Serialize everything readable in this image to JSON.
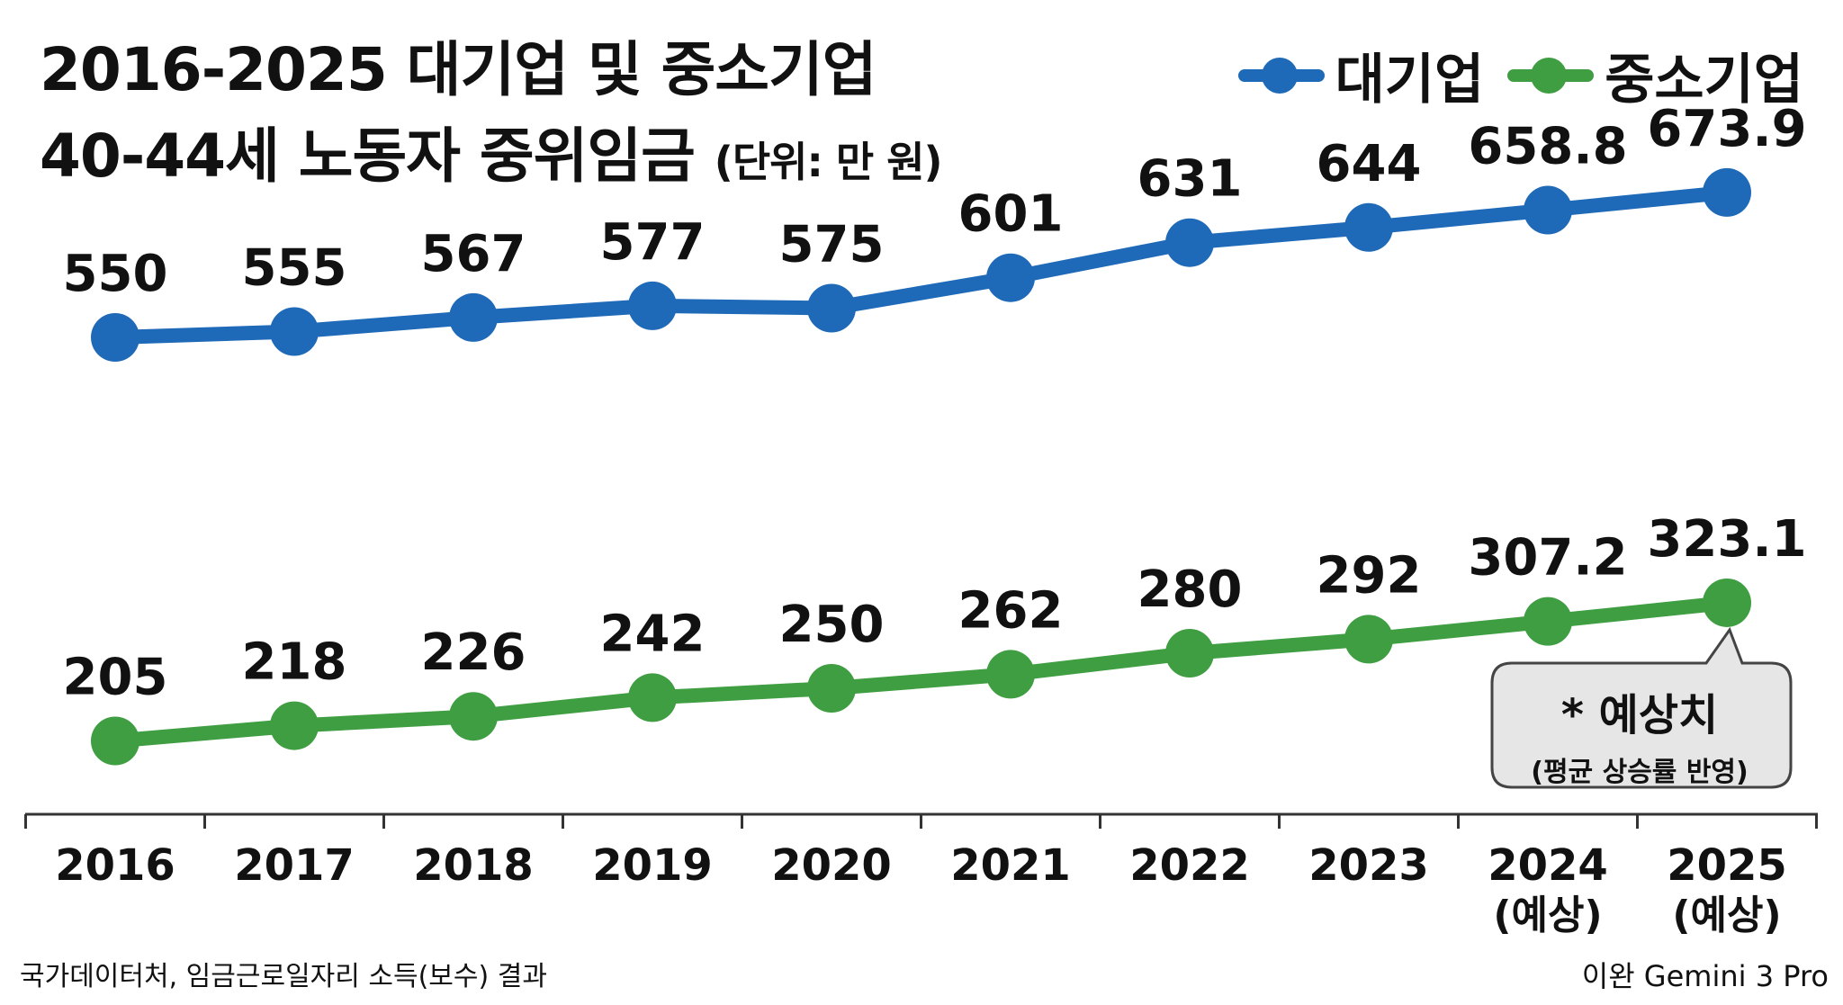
{
  "title": {
    "line1": "2016-2025 대기업 및 중소기업",
    "line2": "40-44세 노동자 중위임금",
    "unit": "(단위: 만 원)"
  },
  "legend": [
    {
      "label": "대기업",
      "color": "#1f6ab8"
    },
    {
      "label": "중소기업",
      "color": "#3f9e41"
    }
  ],
  "chart_data": {
    "type": "line",
    "title": "2016-2025 대기업 및 중소기업 40-44세 노동자 중위임금",
    "ylabel": "(단위: 만 원)",
    "xlabel": "",
    "ylim": [
      180,
      690
    ],
    "categories": [
      "2016",
      "2017",
      "2018",
      "2019",
      "2020",
      "2021",
      "2022",
      "2023",
      "2024",
      "2025"
    ],
    "category_notes": [
      "",
      "",
      "",
      "",
      "",
      "",
      "",
      "",
      "(예상)",
      "(예상)"
    ],
    "series": [
      {
        "name": "대기업",
        "color": "#1f6ab8",
        "values": [
          550,
          555,
          567,
          577,
          575,
          601,
          631,
          644,
          658.8,
          673.9
        ],
        "labels": [
          "550",
          "555",
          "567",
          "577",
          "575",
          "601",
          "631",
          "644",
          "658.8",
          "673.9"
        ]
      },
      {
        "name": "중소기업",
        "color": "#3f9e41",
        "values": [
          205,
          218,
          226,
          242,
          250,
          262,
          280,
          292,
          307.2,
          323.1
        ],
        "labels": [
          "205",
          "218",
          "226",
          "242",
          "250",
          "262",
          "280",
          "292",
          "307.2",
          "323.1"
        ]
      }
    ],
    "grid": false,
    "legend_position": "top-right"
  },
  "note": {
    "line1": "* 예상치",
    "line2": "(평균 상승률 반영)"
  },
  "source": "국가데이터처, 임금근로일자리 소득(보수) 결과",
  "credit": "이완 Gemini 3 Pro"
}
